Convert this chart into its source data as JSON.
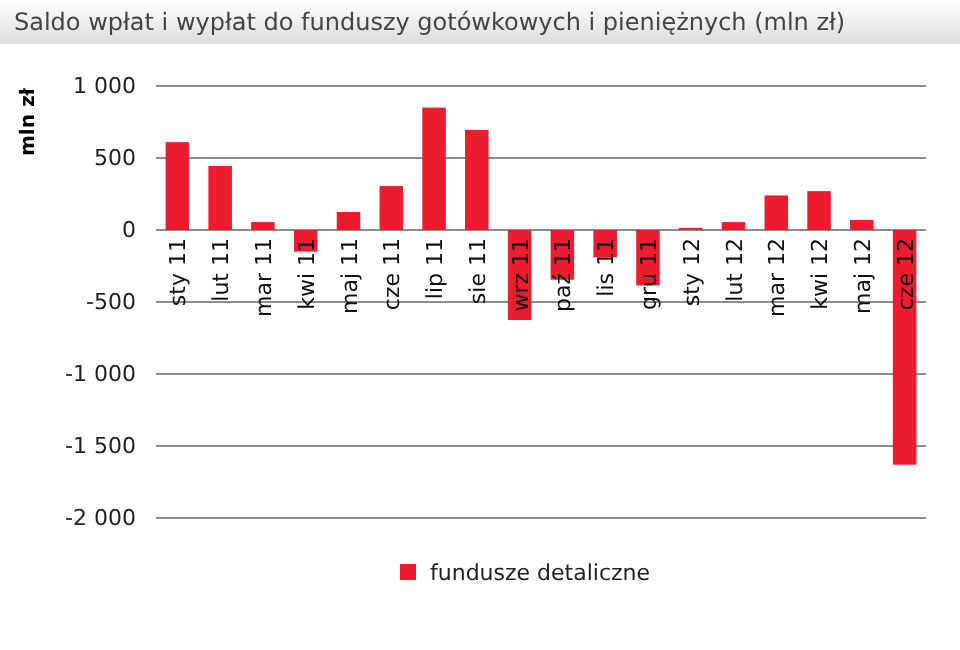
{
  "chart_data": {
    "type": "bar",
    "title": "Saldo wpłat i wypłat do funduszy gotówkowych i pieniężnych (mln zł)",
    "ylabel": "mln zł",
    "categories": [
      "sty 11",
      "lut 11",
      "mar 11",
      "kwi 11",
      "maj 11",
      "cze 11",
      "lip 11",
      "sie 11",
      "wrz 11",
      "paź 11",
      "lis 11",
      "gru 11",
      "sty 12",
      "lut 12",
      "mar 12",
      "kwi 12",
      "maj 12",
      "cze 12"
    ],
    "series": [
      {
        "name": "fundusze detaliczne",
        "color": "#ed1c2e",
        "values": [
          610,
          445,
          55,
          -150,
          125,
          305,
          850,
          695,
          -625,
          -345,
          -190,
          -385,
          15,
          55,
          240,
          270,
          70,
          -1630
        ]
      }
    ],
    "ylim": [
      -2000,
      1000
    ],
    "yticks": [
      {
        "value": -2000,
        "label": "-2 000"
      },
      {
        "value": -1500,
        "label": "-1 500"
      },
      {
        "value": -1000,
        "label": "-1 000"
      },
      -500,
      0,
      500,
      {
        "value": 1000,
        "label": "1 000"
      }
    ],
    "grid": "y",
    "legend": "bottom"
  }
}
